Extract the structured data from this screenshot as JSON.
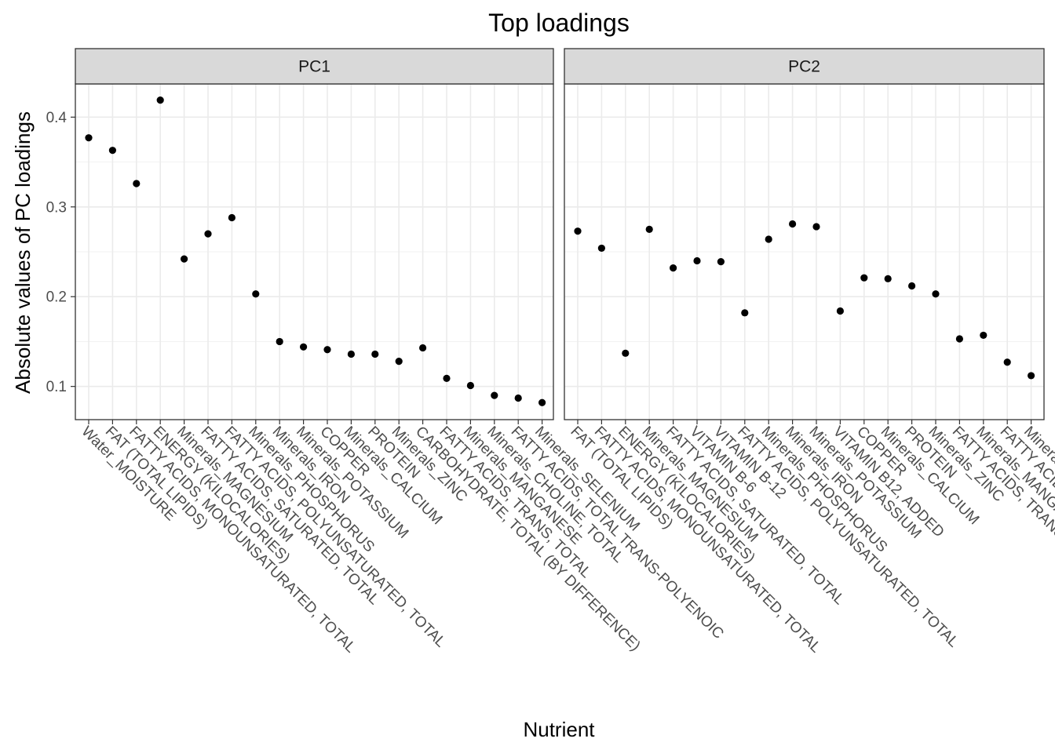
{
  "chart_data": {
    "type": "scatter",
    "title": "Top loadings",
    "xlabel": "Nutrient",
    "ylabel": "Absolute values of PC loadings",
    "ylim": [
      0.063,
      0.437
    ],
    "yticks": [
      0.1,
      0.2,
      0.3,
      0.4
    ],
    "grid": true,
    "legend": "none",
    "point_color": "#000000",
    "panels": [
      {
        "name": "PC1",
        "categories": [
          "Water_MOISTURE",
          "FAT (TOTAL LIPIDS)",
          "FATTY ACIDS, MONOUNSATURATED, TOTAL",
          "ENERGY (KILOCALORIES)",
          "Minerals_MAGNESIUM",
          "FATTY ACIDS, SATURATED, TOTAL",
          "FATTY ACIDS, POLYUNSATURATED, TOTAL",
          "Minerals_PHOSPHORUS",
          "Minerals_IRON",
          "Minerals_POTASSIUM",
          "COPPER",
          "Minerals_CALCIUM",
          "PROTEIN",
          "Minerals_ZINC",
          "CARBOHYDRATE, TOTAL (BY DIFFERENCE)",
          "FATTY ACIDS, TRANS, TOTAL",
          "Minerals_MANGANESE",
          "Minerals_CHOLINE, TOTAL",
          "FATTY ACIDS, TOTAL TRANS-POLYENOIC",
          "Minerals_SELENIUM"
        ],
        "values": [
          0.377,
          0.363,
          0.326,
          0.419,
          0.242,
          0.27,
          0.288,
          0.203,
          0.15,
          0.144,
          0.141,
          0.136,
          0.136,
          0.128,
          0.143,
          0.109,
          0.101,
          0.09,
          0.087,
          0.082
        ]
      },
      {
        "name": "PC2",
        "categories": [
          "FAT (TOTAL LIPIDS)",
          "FATTY ACIDS, MONOUNSATURATED, TOTAL",
          "ENERGY (KILOCALORIES)",
          "Minerals_MAGNESIUM",
          "FATTY ACIDS, SATURATED, TOTAL",
          "VITAMIN B-6",
          "VITAMIN B-12",
          "FATTY ACIDS, POLYUNSATURATED, TOTAL",
          "Minerals_PHOSPHORUS",
          "Minerals_IRON",
          "Minerals_POTASSIUM",
          "VITAMIN B12, ADDED",
          "COPPER",
          "Minerals_CALCIUM",
          "PROTEIN",
          "Minerals_ZINC",
          "FATTY ACIDS, TRANS, TOTAL",
          "Minerals_MANGANESE",
          "FATTY ACIDS, TOTAL TRANS-POLYENOIC",
          "Minerals_SELENIUM"
        ],
        "values": [
          0.273,
          0.254,
          0.137,
          0.275,
          0.232,
          0.24,
          0.239,
          0.182,
          0.264,
          0.281,
          0.278,
          0.184,
          0.221,
          0.22,
          0.212,
          0.203,
          0.153,
          0.157,
          0.127,
          0.112
        ]
      }
    ]
  }
}
